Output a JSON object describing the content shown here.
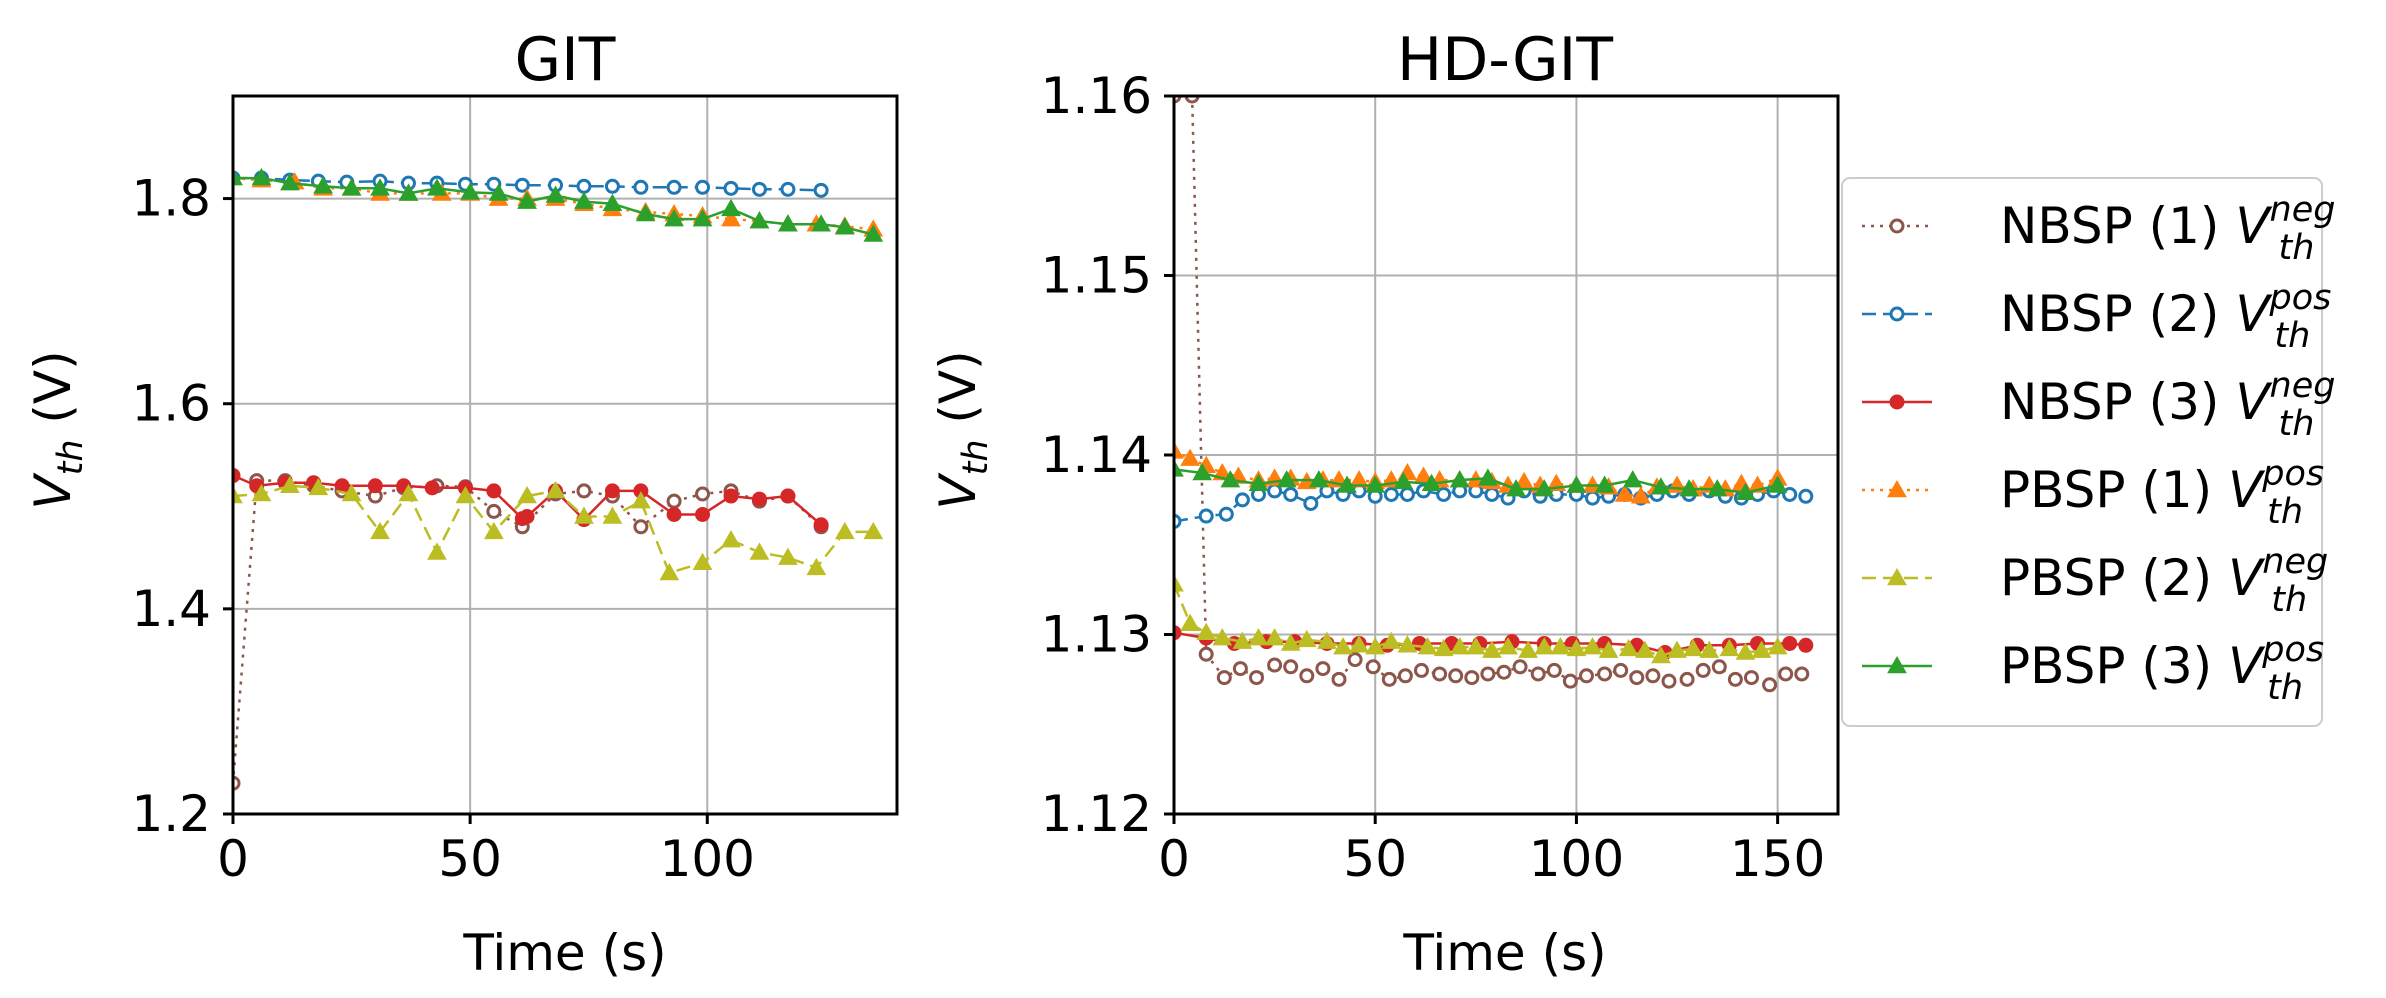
{
  "chart_data": [
    {
      "type": "line",
      "title": "GIT",
      "xlabel": "Time (s)",
      "ylabel": {
        "main": "V",
        "sub": "th",
        "unit": " (V)"
      },
      "xlim": [
        0,
        140
      ],
      "ylim": [
        1.2,
        1.9
      ],
      "xticks": [
        0,
        50,
        100
      ],
      "yticks": [
        1.2,
        1.4,
        1.6,
        1.8
      ],
      "ytick_labels": [
        "1.2",
        "1.4",
        "1.6",
        "1.8"
      ],
      "grid": true,
      "series": [
        {
          "name": "NBSP (1) Vth neg",
          "color": "#8c564b",
          "dash": "dotted",
          "marker": "circle",
          "x": [
            0,
            5,
            11,
            17,
            23,
            30,
            36,
            43,
            49,
            55,
            61,
            68,
            74,
            80,
            86,
            93,
            99,
            105,
            111,
            117,
            124
          ],
          "y": [
            1.23,
            1.525,
            1.525,
            1.52,
            1.515,
            1.51,
            1.518,
            1.52,
            1.519,
            1.495,
            1.48,
            1.512,
            1.515,
            1.51,
            1.48,
            1.505,
            1.512,
            1.515,
            1.505,
            1.51,
            1.48
          ]
        },
        {
          "name": "NBSP (2) Vth pos",
          "color": "#1f77b4",
          "dash": "dashed",
          "marker": "circle",
          "x": [
            0,
            6,
            12,
            18,
            24,
            31,
            37,
            43,
            49,
            55,
            61,
            68,
            74,
            80,
            86,
            93,
            99,
            105,
            111,
            117,
            124
          ],
          "y": [
            1.82,
            1.82,
            1.818,
            1.817,
            1.816,
            1.817,
            1.815,
            1.815,
            1.814,
            1.814,
            1.813,
            1.813,
            1.812,
            1.812,
            1.811,
            1.811,
            1.811,
            1.81,
            1.809,
            1.809,
            1.808
          ]
        },
        {
          "name": "NBSP (3) Vth neg",
          "color": "#d62728",
          "dash": "solid",
          "marker": "circle",
          "x": [
            0,
            5,
            11,
            17,
            23,
            30,
            36,
            42,
            49,
            55,
            61,
            62,
            68,
            74,
            80,
            86,
            93,
            99,
            105,
            111,
            117,
            124
          ],
          "y": [
            1.53,
            1.52,
            1.523,
            1.523,
            1.52,
            1.52,
            1.52,
            1.518,
            1.518,
            1.515,
            1.488,
            1.49,
            1.515,
            1.487,
            1.515,
            1.515,
            1.492,
            1.492,
            1.51,
            1.507,
            1.51,
            1.482
          ]
        },
        {
          "name": "PBSP (1) Vth pos",
          "color": "#ff7f0e",
          "dash": "dotted",
          "marker": "triangle",
          "x": [
            0,
            6,
            13,
            19,
            25,
            31,
            37,
            44,
            50,
            56,
            62,
            68,
            74,
            80,
            87,
            93,
            99,
            105,
            111,
            117,
            123,
            129,
            135
          ],
          "y": [
            1.82,
            1.818,
            1.816,
            1.81,
            1.81,
            1.805,
            1.805,
            1.805,
            1.805,
            1.8,
            1.8,
            1.8,
            1.795,
            1.79,
            1.787,
            1.785,
            1.783,
            1.78,
            1.778,
            1.775,
            1.775,
            1.773,
            1.77
          ]
        },
        {
          "name": "PBSP (2) Vth neg",
          "color": "#bcbd22",
          "dash": "dashed",
          "marker": "triangle",
          "x": [
            0,
            6,
            12,
            18,
            25,
            31,
            37,
            43,
            49,
            55,
            62,
            68,
            74,
            80,
            86,
            92,
            99,
            105,
            111,
            117,
            123,
            129,
            135
          ],
          "y": [
            1.51,
            1.512,
            1.52,
            1.518,
            1.512,
            1.475,
            1.512,
            1.455,
            1.51,
            1.475,
            1.51,
            1.515,
            1.49,
            1.49,
            1.505,
            1.435,
            1.445,
            1.467,
            1.455,
            1.45,
            1.44,
            1.475,
            1.475
          ]
        },
        {
          "name": "PBSP (3) Vth pos",
          "color": "#2ca02c",
          "dash": "solid",
          "marker": "triangle",
          "x": [
            0,
            6,
            12,
            19,
            25,
            31,
            37,
            43,
            50,
            56,
            62,
            68,
            74,
            80,
            87,
            93,
            99,
            105,
            111,
            117,
            124,
            129,
            135
          ],
          "y": [
            1.82,
            1.82,
            1.815,
            1.812,
            1.81,
            1.81,
            1.805,
            1.81,
            1.806,
            1.805,
            1.797,
            1.803,
            1.797,
            1.795,
            1.785,
            1.78,
            1.78,
            1.79,
            1.778,
            1.775,
            1.775,
            1.772,
            1.765
          ]
        }
      ]
    },
    {
      "type": "line",
      "title": "HD-GIT",
      "xlabel": "Time (s)",
      "ylabel": {
        "main": "V",
        "sub": "th",
        "unit": " (V)"
      },
      "xlim": [
        0,
        165
      ],
      "ylim": [
        1.12,
        1.16
      ],
      "xticks": [
        0,
        50,
        100,
        150
      ],
      "yticks": [
        1.12,
        1.13,
        1.14,
        1.15,
        1.16
      ],
      "ytick_labels": [
        "1.12",
        "1.13",
        "1.14",
        "1.15",
        "1.16"
      ],
      "grid": true,
      "series": [
        {
          "name": "NBSP (1) Vth neg",
          "color": "#8c564b",
          "dash": "dotted",
          "marker": "circle",
          "x": [
            0,
            4.5,
            8,
            12.5,
            16.5,
            20.5,
            25,
            29,
            33,
            37,
            41,
            45,
            49.5,
            53.5,
            57.5,
            61.5,
            66,
            70,
            74,
            78,
            82,
            86,
            90.5,
            94.5,
            98.5,
            102.5,
            107,
            111,
            115,
            119,
            123,
            127.5,
            131.5,
            135.5,
            139.5,
            143.5,
            148,
            152,
            156
          ],
          "y": [
            1.16,
            1.16,
            1.1289,
            1.1276,
            1.1281,
            1.1276,
            1.1283,
            1.1282,
            1.1277,
            1.1281,
            1.1275,
            1.1286,
            1.1282,
            1.1275,
            1.1277,
            1.128,
            1.1278,
            1.1277,
            1.1276,
            1.1278,
            1.1279,
            1.1282,
            1.1278,
            1.128,
            1.1274,
            1.1277,
            1.1278,
            1.128,
            1.1276,
            1.1277,
            1.1274,
            1.1275,
            1.128,
            1.1282,
            1.1275,
            1.1276,
            1.1272,
            1.1278,
            1.1278
          ]
        },
        {
          "name": "NBSP (2) Vth pos",
          "color": "#1f77b4",
          "dash": "dashed",
          "marker": "circle",
          "x": [
            0,
            8,
            13,
            17,
            21,
            25,
            29,
            34,
            38,
            42,
            46,
            50,
            54,
            58,
            62,
            67,
            71,
            75,
            79,
            83,
            87,
            91,
            95,
            100,
            104,
            108,
            112,
            116,
            120,
            124,
            128,
            133,
            137,
            141,
            145,
            149,
            153,
            157
          ],
          "y": [
            1.1363,
            1.1366,
            1.1367,
            1.1375,
            1.1378,
            1.138,
            1.1378,
            1.1373,
            1.138,
            1.1378,
            1.138,
            1.1377,
            1.1378,
            1.1378,
            1.138,
            1.1378,
            1.138,
            1.138,
            1.1378,
            1.1376,
            1.138,
            1.1377,
            1.1378,
            1.1378,
            1.1376,
            1.1377,
            1.1378,
            1.1376,
            1.1378,
            1.138,
            1.1378,
            1.138,
            1.1377,
            1.1376,
            1.1378,
            1.138,
            1.1378,
            1.1377
          ]
        },
        {
          "name": "NBSP (3) Vth neg",
          "color": "#d62728",
          "dash": "solid",
          "marker": "circle",
          "x": [
            0,
            8,
            15,
            23,
            30,
            38,
            46,
            53,
            61,
            69,
            76,
            84,
            92,
            99,
            107,
            115,
            122,
            130,
            138,
            145,
            153,
            157
          ],
          "y": [
            1.1301,
            1.1298,
            1.1295,
            1.1296,
            1.1296,
            1.1295,
            1.1295,
            1.1294,
            1.1295,
            1.1295,
            1.1295,
            1.1296,
            1.1295,
            1.1295,
            1.1295,
            1.1294,
            1.129,
            1.1294,
            1.1294,
            1.1295,
            1.1295,
            1.1294
          ]
        },
        {
          "name": "PBSP (1) Vth pos",
          "color": "#ff7f0e",
          "dash": "dotted",
          "marker": "triangle",
          "x": [
            0,
            4,
            8,
            12,
            16,
            21,
            25,
            29,
            33,
            37,
            41,
            46,
            50,
            54,
            58,
            62,
            66,
            71,
            75,
            79,
            83,
            87,
            91,
            95,
            100,
            104,
            108,
            112,
            116,
            120,
            125,
            129,
            133,
            137,
            141,
            145,
            150
          ],
          "y": [
            1.1402,
            1.1398,
            1.1394,
            1.139,
            1.1388,
            1.1386,
            1.1387,
            1.1387,
            1.1385,
            1.1386,
            1.1386,
            1.1386,
            1.1385,
            1.1386,
            1.139,
            1.1388,
            1.1386,
            1.1386,
            1.1386,
            1.1385,
            1.1383,
            1.1385,
            1.1383,
            1.1384,
            1.1383,
            1.1383,
            1.1382,
            1.1378,
            1.1377,
            1.1382,
            1.1383,
            1.1381,
            1.1383,
            1.1381,
            1.1384,
            1.1383,
            1.1387
          ]
        },
        {
          "name": "PBSP (2) Vth neg",
          "color": "#bcbd22",
          "dash": "dashed",
          "marker": "triangle",
          "x": [
            0,
            4,
            8,
            12,
            17,
            21,
            25,
            29,
            33,
            38,
            42,
            46,
            50,
            54,
            58,
            63,
            67,
            71,
            75,
            79,
            83,
            88,
            92,
            96,
            100,
            104,
            108,
            113,
            117,
            121,
            125,
            129,
            133,
            138,
            142,
            146,
            150
          ],
          "y": [
            1.1328,
            1.1306,
            1.1301,
            1.1298,
            1.1296,
            1.1298,
            1.1298,
            1.1295,
            1.1297,
            1.1296,
            1.1293,
            1.1294,
            1.1293,
            1.1296,
            1.1294,
            1.1293,
            1.1292,
            1.1293,
            1.1293,
            1.1291,
            1.1293,
            1.1291,
            1.1293,
            1.1293,
            1.1292,
            1.1293,
            1.1291,
            1.1292,
            1.1291,
            1.1288,
            1.1291,
            1.1292,
            1.1291,
            1.1292,
            1.129,
            1.1291,
            1.1293
          ]
        },
        {
          "name": "PBSP (3) Vth pos",
          "color": "#2ca02c",
          "dash": "solid",
          "marker": "triangle",
          "x": [
            0,
            7,
            14,
            21,
            28,
            36,
            43,
            50,
            57,
            64,
            71,
            78,
            85,
            92,
            100,
            107,
            114,
            121,
            128,
            135,
            142,
            150
          ],
          "y": [
            1.1392,
            1.139,
            1.1386,
            1.1384,
            1.1386,
            1.1386,
            1.1383,
            1.1383,
            1.1385,
            1.1384,
            1.1386,
            1.1387,
            1.1381,
            1.1381,
            1.1383,
            1.1383,
            1.1386,
            1.1382,
            1.1381,
            1.1381,
            1.1379,
            1.1383
          ]
        }
      ]
    }
  ],
  "legend": {
    "placement": "right",
    "entries": [
      {
        "label": "NBSP (1)",
        "v": "V",
        "sub": "th",
        "sup": "neg",
        "color": "#8c564b",
        "dash": "dotted",
        "marker": "circle"
      },
      {
        "label": "NBSP (2)",
        "v": "V",
        "sub": "th",
        "sup": "pos",
        "color": "#1f77b4",
        "dash": "dashed",
        "marker": "circle"
      },
      {
        "label": "NBSP (3)",
        "v": "V",
        "sub": "th",
        "sup": "neg",
        "color": "#d62728",
        "dash": "solid",
        "marker": "circle"
      },
      {
        "label": "PBSP (1)",
        "v": "V",
        "sub": "th",
        "sup": "pos",
        "color": "#ff7f0e",
        "dash": "dotted",
        "marker": "triangle"
      },
      {
        "label": "PBSP (2)",
        "v": "V",
        "sub": "th",
        "sup": "neg",
        "color": "#bcbd22",
        "dash": "dashed",
        "marker": "triangle"
      },
      {
        "label": "PBSP (3)",
        "v": "V",
        "sub": "th",
        "sup": "pos",
        "color": "#2ca02c",
        "dash": "solid",
        "marker": "triangle"
      }
    ]
  }
}
